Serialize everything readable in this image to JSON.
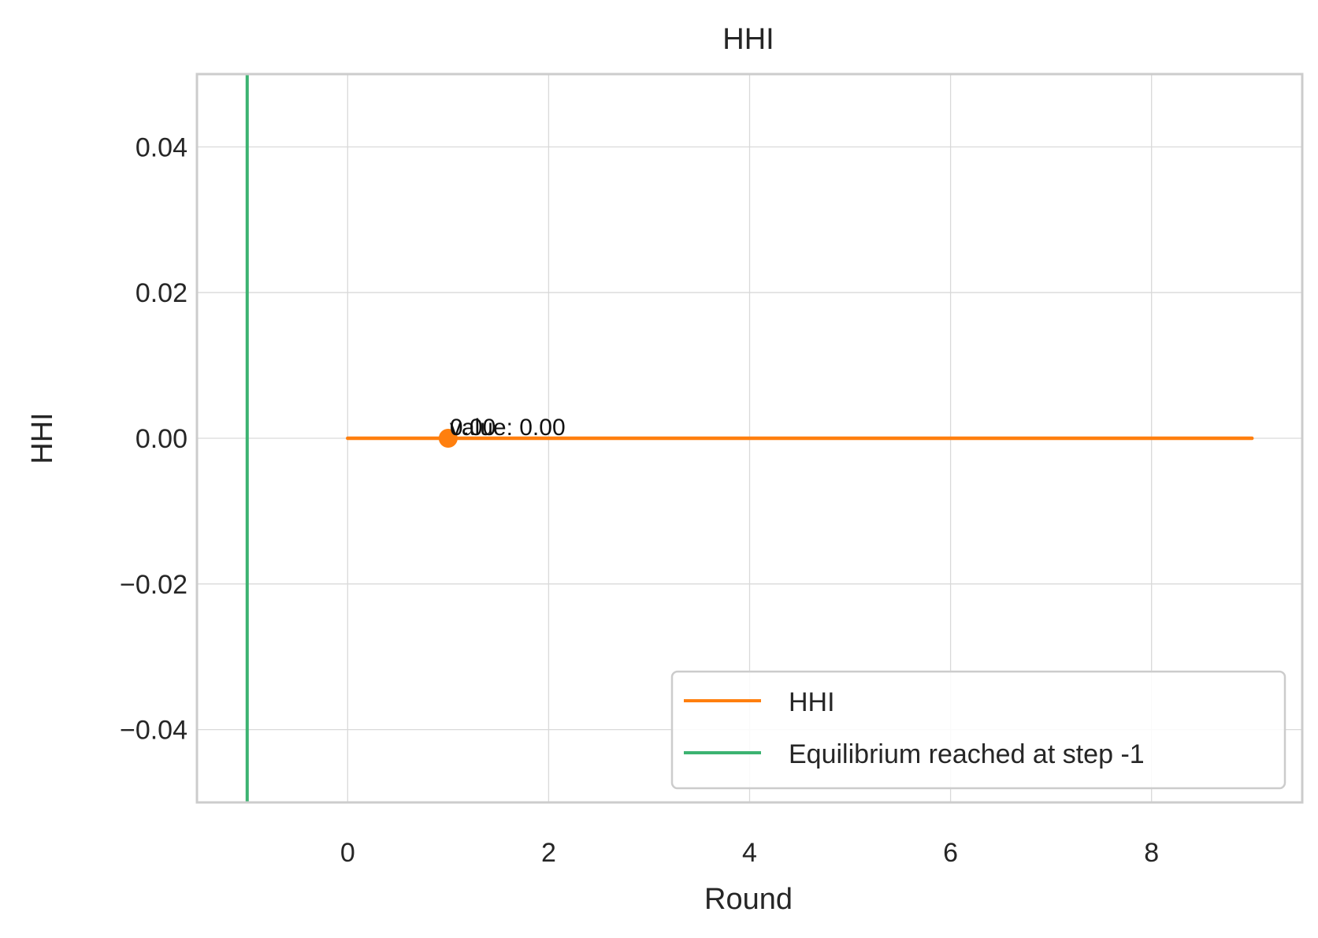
{
  "chart_data": {
    "type": "line",
    "title": "HHI",
    "xlabel": "Round",
    "ylabel": "HHI",
    "xlim": [
      -1.5,
      9.5
    ],
    "ylim": [
      -0.05,
      0.05
    ],
    "xticks": [
      0,
      2,
      4,
      6,
      8
    ],
    "xtick_labels": [
      "0",
      "2",
      "4",
      "6",
      "8"
    ],
    "yticks": [
      -0.04,
      -0.02,
      0.0,
      0.02,
      0.04
    ],
    "ytick_labels": [
      "−0.04",
      "−0.02",
      "0.00",
      "0.02",
      "0.04"
    ],
    "grid": true,
    "series": [
      {
        "name": "HHI",
        "color": "#ff7f0e",
        "x": [
          0,
          1,
          2,
          3,
          4,
          5,
          6,
          7,
          8,
          9
        ],
        "values": [
          0.0,
          0.0,
          0.0,
          0.0,
          0.0,
          0.0,
          0.0,
          0.0,
          0.0,
          0.0
        ]
      }
    ],
    "vlines": [
      {
        "name": "Equilibrium reached at step -1",
        "x": -1,
        "color": "#3cb371"
      }
    ],
    "marker": {
      "x": 1,
      "y": 0.0,
      "color": "#ff7f0e"
    },
    "annotations": [
      {
        "text": "value: 0.00",
        "x": 1,
        "y": 0.0
      },
      {
        "text": "0.00",
        "x": 1,
        "y": 0.0
      }
    ],
    "legend": {
      "position": "lower-right",
      "entries": [
        {
          "label": "HHI",
          "color": "#ff7f0e"
        },
        {
          "label": "Equilibrium reached at step -1",
          "color": "#3cb371"
        }
      ]
    }
  }
}
